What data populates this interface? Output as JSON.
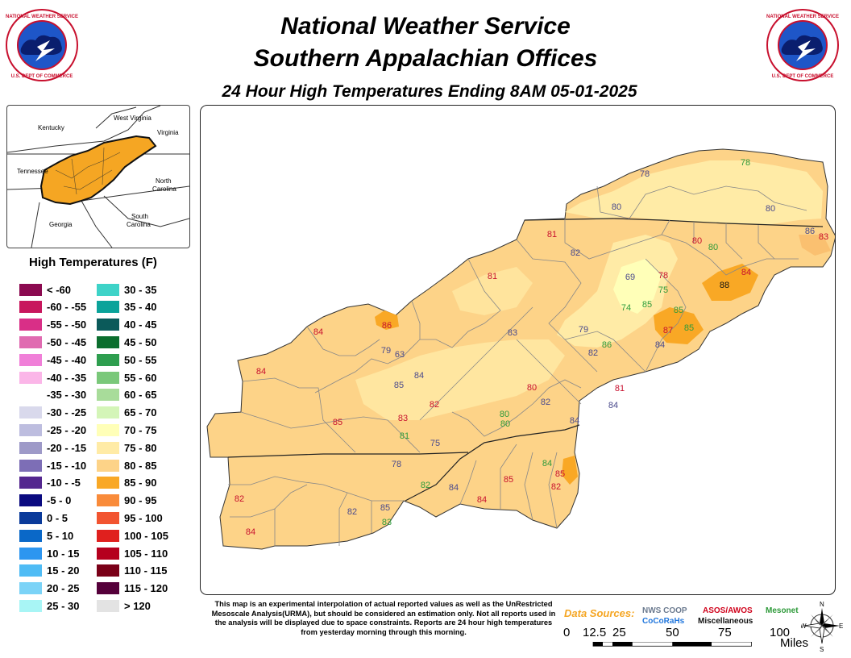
{
  "header": {
    "title_line1": "National Weather Service",
    "title_line2": "Southern Appalachian Offices",
    "subtitle": "24 Hour High Temperatures Ending 8AM 05-01-2025",
    "logo_text": "NATIONAL WEATHER SERVICE · U.S. DEPARTMENT OF COMMERCE"
  },
  "inset_map": {
    "labels": [
      "Kentucky",
      "West Virginia",
      "Virginia",
      "Tennessee",
      "North Carolina",
      "Georgia",
      "South Carolina"
    ],
    "region_color": "#F5A623"
  },
  "legend": {
    "title": "High Temperatures (F)",
    "items": [
      {
        "label": "< -60",
        "color": "#8B0A50"
      },
      {
        "label": "-60 - -55",
        "color": "#C8175D"
      },
      {
        "label": "-55 - -50",
        "color": "#D92F87"
      },
      {
        "label": "-50 - -45",
        "color": "#E06BB1"
      },
      {
        "label": "-45 - -40",
        "color": "#F07FD8"
      },
      {
        "label": "-40 - -35",
        "color": "#FBB6E8"
      },
      {
        "label": "-35 - -30",
        "color": "#FFFFFF"
      },
      {
        "label": "-30 - -25",
        "color": "#D9D9EC"
      },
      {
        "label": "-25 - -20",
        "color": "#BDBDDF"
      },
      {
        "label": "-20 - -15",
        "color": "#9E9AC8"
      },
      {
        "label": "-15 - -10",
        "color": "#7D6EB6"
      },
      {
        "label": "-10 - -5",
        "color": "#54278F"
      },
      {
        "label": "-5 - 0",
        "color": "#0A0A80"
      },
      {
        "label": "0 - 5",
        "color": "#0A3A9A"
      },
      {
        "label": "5 - 10",
        "color": "#0A68C8"
      },
      {
        "label": "10 - 15",
        "color": "#2D96F0"
      },
      {
        "label": "15 - 20",
        "color": "#4FBCF5"
      },
      {
        "label": "20 - 25",
        "color": "#7BD3F7"
      },
      {
        "label": "25 - 30",
        "color": "#A8F5F5"
      },
      {
        "label": "30 - 35",
        "color": "#3ED3C8"
      },
      {
        "label": "35 - 40",
        "color": "#0BA39A"
      },
      {
        "label": "40 - 45",
        "color": "#0B5A5A"
      },
      {
        "label": "45 - 50",
        "color": "#0B6E2E"
      },
      {
        "label": "50 - 55",
        "color": "#2E9E4F"
      },
      {
        "label": "55 - 60",
        "color": "#7AC87A"
      },
      {
        "label": "60 - 65",
        "color": "#A8DC9A"
      },
      {
        "label": "65 - 70",
        "color": "#D4F5B8"
      },
      {
        "label": "70 - 75",
        "color": "#FFFFB8"
      },
      {
        "label": "75 - 80",
        "color": "#FFEBA6"
      },
      {
        "label": "80 - 85",
        "color": "#FDD388"
      },
      {
        "label": "85 - 90",
        "color": "#F9A825"
      },
      {
        "label": "90 - 95",
        "color": "#F98B3A"
      },
      {
        "label": "95 - 100",
        "color": "#F25430"
      },
      {
        "label": "100 - 105",
        "color": "#E0201E"
      },
      {
        "label": "105 - 110",
        "color": "#B5001E"
      },
      {
        "label": "110 - 115",
        "color": "#7A0018"
      },
      {
        "label": "115 - 120",
        "color": "#55003A"
      },
      {
        "label": "> 120",
        "color": "#E3E3E3"
      }
    ]
  },
  "observations": [
    {
      "v": "78",
      "src": "mesonet"
    },
    {
      "v": "78",
      "src": "coop"
    },
    {
      "v": "80",
      "src": "coop"
    },
    {
      "v": "80",
      "src": "coop"
    },
    {
      "v": "86",
      "src": "coop"
    },
    {
      "v": "83",
      "src": "asos"
    },
    {
      "v": "81",
      "src": "asos"
    },
    {
      "v": "82",
      "src": "coop"
    },
    {
      "v": "80",
      "src": "asos"
    },
    {
      "v": "80",
      "src": "mesonet"
    },
    {
      "v": "81",
      "src": "asos"
    },
    {
      "v": "69",
      "src": "coop"
    },
    {
      "v": "78",
      "src": "asos"
    },
    {
      "v": "75",
      "src": "mesonet"
    },
    {
      "v": "84",
      "src": "asos"
    },
    {
      "v": "88",
      "src": "misc"
    },
    {
      "v": "74",
      "src": "mesonet"
    },
    {
      "v": "85",
      "src": "mesonet"
    },
    {
      "v": "85",
      "src": "mesonet"
    },
    {
      "v": "87",
      "src": "asos"
    },
    {
      "v": "85",
      "src": "mesonet"
    },
    {
      "v": "84",
      "src": "coop"
    },
    {
      "v": "84",
      "src": "asos"
    },
    {
      "v": "86",
      "src": "asos"
    },
    {
      "v": "83",
      "src": "coop"
    },
    {
      "v": "79",
      "src": "coop"
    },
    {
      "v": "82",
      "src": "coop"
    },
    {
      "v": "86",
      "src": "mesonet"
    },
    {
      "v": "79",
      "src": "coop"
    },
    {
      "v": "63",
      "src": "coop"
    },
    {
      "v": "84",
      "src": "asos"
    },
    {
      "v": "84",
      "src": "coop"
    },
    {
      "v": "85",
      "src": "coop"
    },
    {
      "v": "82",
      "src": "asos"
    },
    {
      "v": "80",
      "src": "asos"
    },
    {
      "v": "81",
      "src": "asos"
    },
    {
      "v": "82",
      "src": "coop"
    },
    {
      "v": "84",
      "src": "coop"
    },
    {
      "v": "85",
      "src": "asos"
    },
    {
      "v": "83",
      "src": "asos"
    },
    {
      "v": "81",
      "src": "mesonet"
    },
    {
      "v": "80",
      "src": "mesonet"
    },
    {
      "v": "80",
      "src": "mesonet"
    },
    {
      "v": "84",
      "src": "coop"
    },
    {
      "v": "75",
      "src": "coop"
    },
    {
      "v": "78",
      "src": "coop"
    },
    {
      "v": "84",
      "src": "mesonet"
    },
    {
      "v": "85",
      "src": "asos"
    },
    {
      "v": "82",
      "src": "asos"
    },
    {
      "v": "82",
      "src": "mesonet"
    },
    {
      "v": "84",
      "src": "coop"
    },
    {
      "v": "85",
      "src": "asos"
    },
    {
      "v": "84",
      "src": "asos"
    },
    {
      "v": "82",
      "src": "asos"
    },
    {
      "v": "82",
      "src": "coop"
    },
    {
      "v": "85",
      "src": "coop"
    },
    {
      "v": "83",
      "src": "mesonet"
    },
    {
      "v": "84",
      "src": "asos"
    }
  ],
  "source_colors": {
    "coop": "#4A4A8C",
    "asos": "#C8102E",
    "mesonet": "#2E9A3A",
    "misc": "#111111",
    "cocorahs": "#2277DD"
  },
  "disclaimer": "This map is an experimental interpolation of actual reported values as well as the UnRestricted Mesoscale Analysis(URMA), but should be considered an estimation only. Not all reports used in the analysis will be displayed due to space constraints. Reports are 24 hour high temperatures from yesterday morning through this morning.",
  "data_sources": {
    "label": "Data Sources:",
    "nws_coop": "NWS COOP",
    "asos_awos": "ASOS/AWOS",
    "mesonet": "Mesonet",
    "cocorahs": "CoCoRaHs",
    "miscellaneous": "Miscellaneous"
  },
  "scale": {
    "ticks": [
      "0",
      "12.5",
      "25",
      "50",
      "75",
      "100"
    ],
    "unit": "Miles"
  },
  "compass": {
    "n": "N",
    "s": "S",
    "e": "E",
    "w": "W"
  }
}
